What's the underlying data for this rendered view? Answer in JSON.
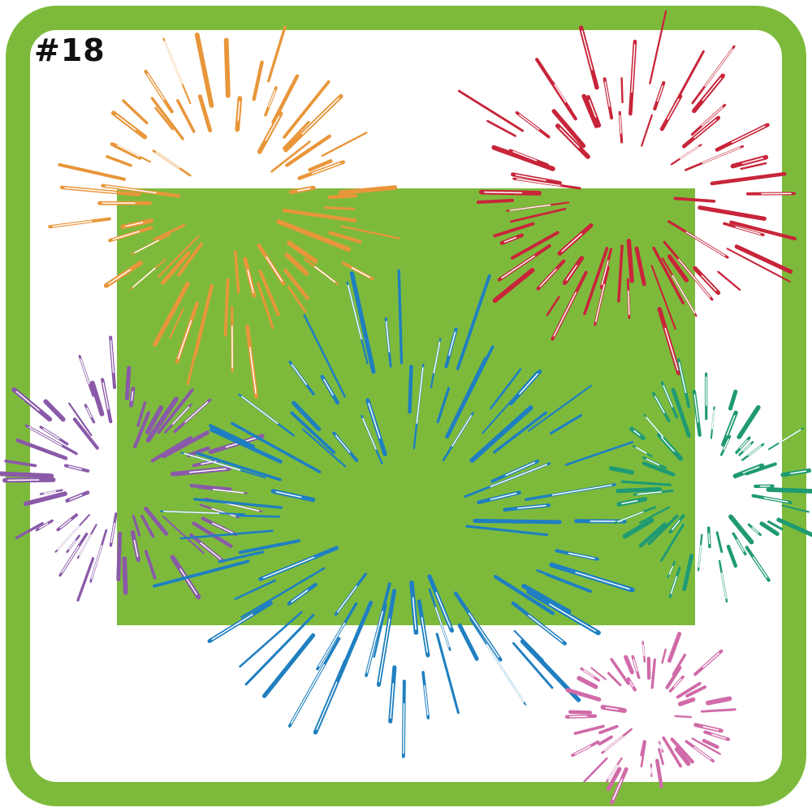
{
  "badge": {
    "label": "#18"
  },
  "colors": {
    "frame": "#7dba3c",
    "panel": "#7dba3c",
    "background": "#ffffff"
  },
  "fireworks": [
    {
      "name": "orange-firework",
      "color": "#e8963a"
    },
    {
      "name": "red-firework",
      "color": "#c8253a"
    },
    {
      "name": "purple-firework",
      "color": "#8a5aa8"
    },
    {
      "name": "blue-firework",
      "color": "#1f7fc0"
    },
    {
      "name": "teal-firework",
      "color": "#1f9a73"
    },
    {
      "name": "pink-firework",
      "color": "#d06aa8"
    }
  ]
}
